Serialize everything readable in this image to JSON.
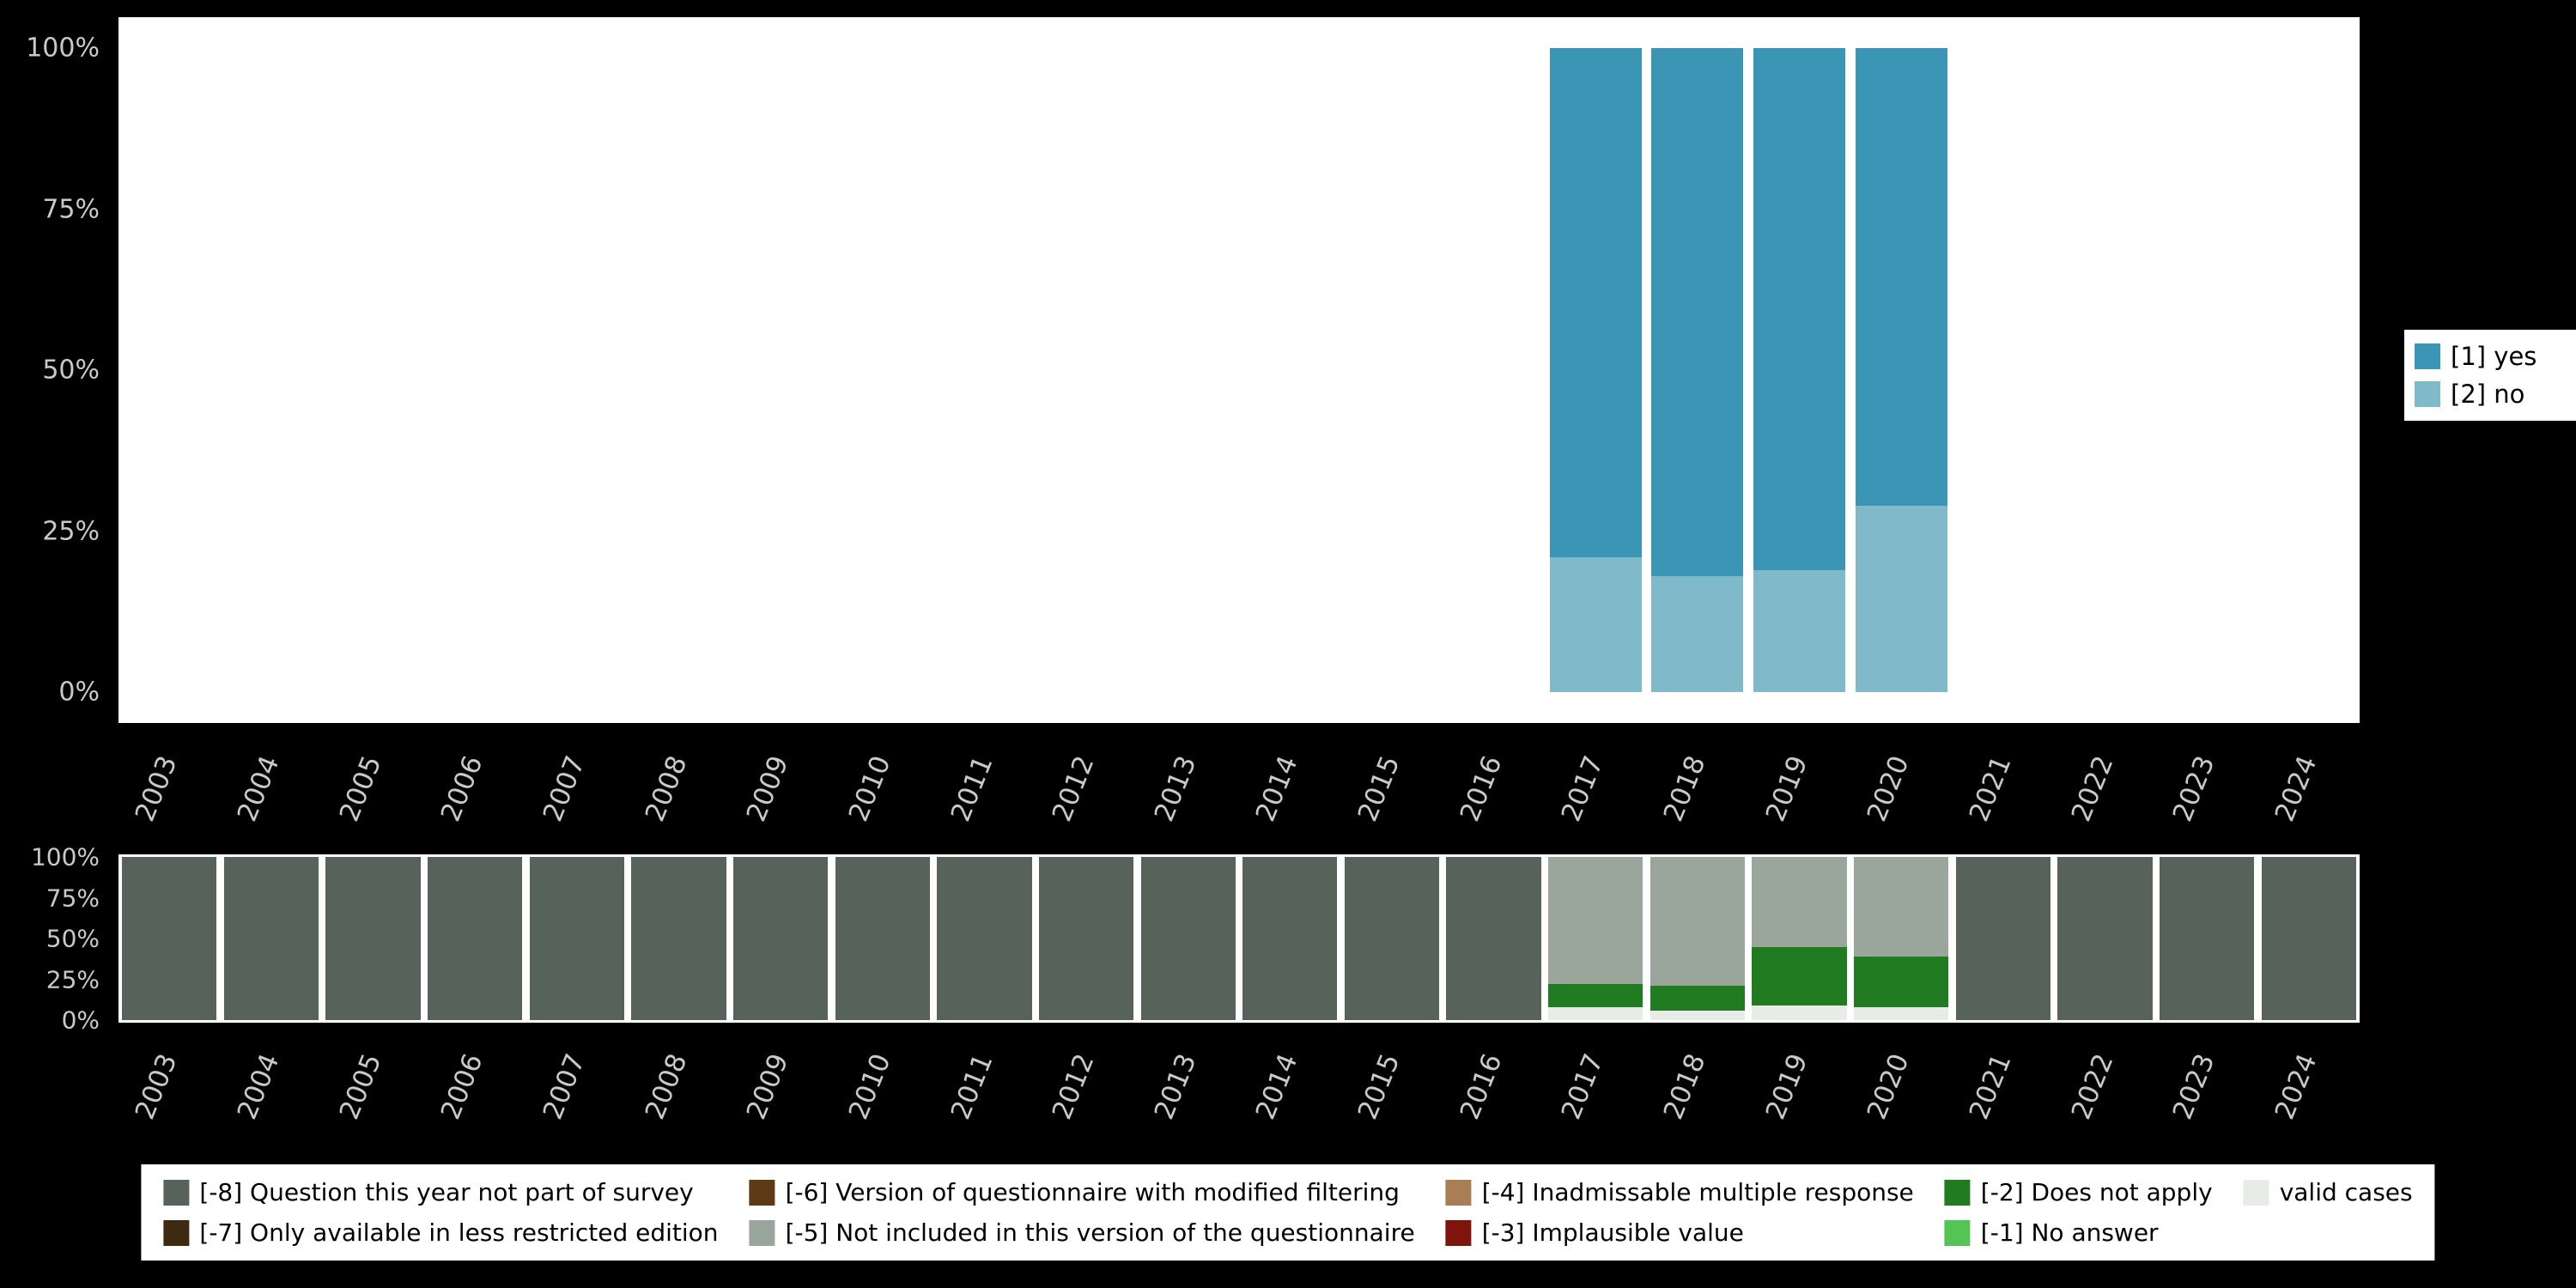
{
  "colors": {
    "background": "#000000",
    "plot_background": "#ffffff",
    "axis_text": "#c9c9c9",
    "yes": "#3a96b4",
    "no": "#7fb9ca",
    "minus8": "#57635a",
    "minus7": "#3e2a12",
    "minus6": "#5c3a16",
    "minus5": "#9aa59b",
    "minus4": "#a97e55",
    "minus3": "#7e140c",
    "minus2": "#217c21",
    "minus1": "#54c454",
    "valid": "#e8ece7"
  },
  "legend_top": [
    {
      "label": "[1] yes",
      "color_key": "yes"
    },
    {
      "label": "[2] no",
      "color_key": "no"
    }
  ],
  "legend_bottom": [
    {
      "label": "[-8] Question this year not part of survey",
      "color_key": "minus8"
    },
    {
      "label": "[-7] Only available in less restricted edition",
      "color_key": "minus7"
    },
    {
      "label": "[-6] Version of questionnaire with modified filtering",
      "color_key": "minus6"
    },
    {
      "label": "[-5] Not included in this version of the questionnaire",
      "color_key": "minus5"
    },
    {
      "label": "[-4] Inadmissable multiple response",
      "color_key": "minus4"
    },
    {
      "label": "[-3] Implausible value",
      "color_key": "minus3"
    },
    {
      "label": "[-2] Does not apply",
      "color_key": "minus2"
    },
    {
      "label": "[-1] No answer",
      "color_key": "minus1"
    },
    {
      "label": "valid cases",
      "color_key": "valid"
    }
  ],
  "chart_data": [
    {
      "type": "bar",
      "stacked": true,
      "unit": "percent",
      "title": "",
      "xlabel": "",
      "ylabel": "",
      "ylim": [
        0,
        100
      ],
      "grid": false,
      "legend_position": "right",
      "bar_width": 0.9,
      "categories": [
        "2003",
        "2004",
        "2005",
        "2006",
        "2007",
        "2008",
        "2009",
        "2010",
        "2011",
        "2012",
        "2013",
        "2014",
        "2015",
        "2016",
        "2017",
        "2018",
        "2019",
        "2020",
        "2021",
        "2022",
        "2023",
        "2024"
      ],
      "y_ticks": [
        {
          "pos": 0,
          "label": "0%"
        },
        {
          "pos": 25,
          "label": "25%"
        },
        {
          "pos": 50,
          "label": "50%"
        },
        {
          "pos": 75,
          "label": "75%"
        },
        {
          "pos": 100,
          "label": "100%"
        }
      ],
      "series": [
        {
          "name": "[2] no",
          "color_key": "no",
          "values": [
            0,
            0,
            0,
            0,
            0,
            0,
            0,
            0,
            0,
            0,
            0,
            0,
            0,
            0,
            21,
            18,
            19,
            29,
            0,
            0,
            0,
            0
          ]
        },
        {
          "name": "[1] yes",
          "color_key": "yes",
          "values": [
            0,
            0,
            0,
            0,
            0,
            0,
            0,
            0,
            0,
            0,
            0,
            0,
            0,
            0,
            79,
            82,
            81,
            71,
            0,
            0,
            0,
            0
          ]
        }
      ]
    },
    {
      "type": "bar",
      "stacked": true,
      "unit": "percent",
      "title": "",
      "xlabel": "",
      "ylabel": "",
      "ylim": [
        0,
        100
      ],
      "grid": false,
      "legend_position": "bottom",
      "bar_width": 0.93,
      "categories": [
        "2003",
        "2004",
        "2005",
        "2006",
        "2007",
        "2008",
        "2009",
        "2010",
        "2011",
        "2012",
        "2013",
        "2014",
        "2015",
        "2016",
        "2017",
        "2018",
        "2019",
        "2020",
        "2021",
        "2022",
        "2023",
        "2024"
      ],
      "y_ticks": [
        {
          "pos": 0,
          "label": "0%"
        },
        {
          "pos": 25,
          "label": "25%"
        },
        {
          "pos": 50,
          "label": "50%"
        },
        {
          "pos": 75,
          "label": "75%"
        },
        {
          "pos": 100,
          "label": "100%"
        }
      ],
      "series": [
        {
          "name": "valid cases",
          "color_key": "valid",
          "values": [
            0,
            0,
            0,
            0,
            0,
            0,
            0,
            0,
            0,
            0,
            0,
            0,
            0,
            0,
            8,
            6,
            9,
            8,
            0,
            0,
            0,
            0
          ]
        },
        {
          "name": "[-2] Does not apply",
          "color_key": "minus2",
          "values": [
            0,
            0,
            0,
            0,
            0,
            0,
            0,
            0,
            0,
            0,
            0,
            0,
            0,
            0,
            14,
            15,
            36,
            31,
            0,
            0,
            0,
            0
          ]
        },
        {
          "name": "[-5] Not included in this version of the questionnaire",
          "color_key": "minus5",
          "values": [
            0,
            0,
            0,
            0,
            0,
            0,
            0,
            0,
            0,
            0,
            0,
            0,
            0,
            0,
            78,
            79,
            55,
            61,
            0,
            0,
            0,
            0
          ]
        },
        {
          "name": "[-8] Question this year not part of survey",
          "color_key": "minus8",
          "values": [
            100,
            100,
            100,
            100,
            100,
            100,
            100,
            100,
            100,
            100,
            100,
            100,
            100,
            100,
            0,
            0,
            0,
            0,
            100,
            100,
            100,
            100
          ]
        }
      ]
    }
  ]
}
